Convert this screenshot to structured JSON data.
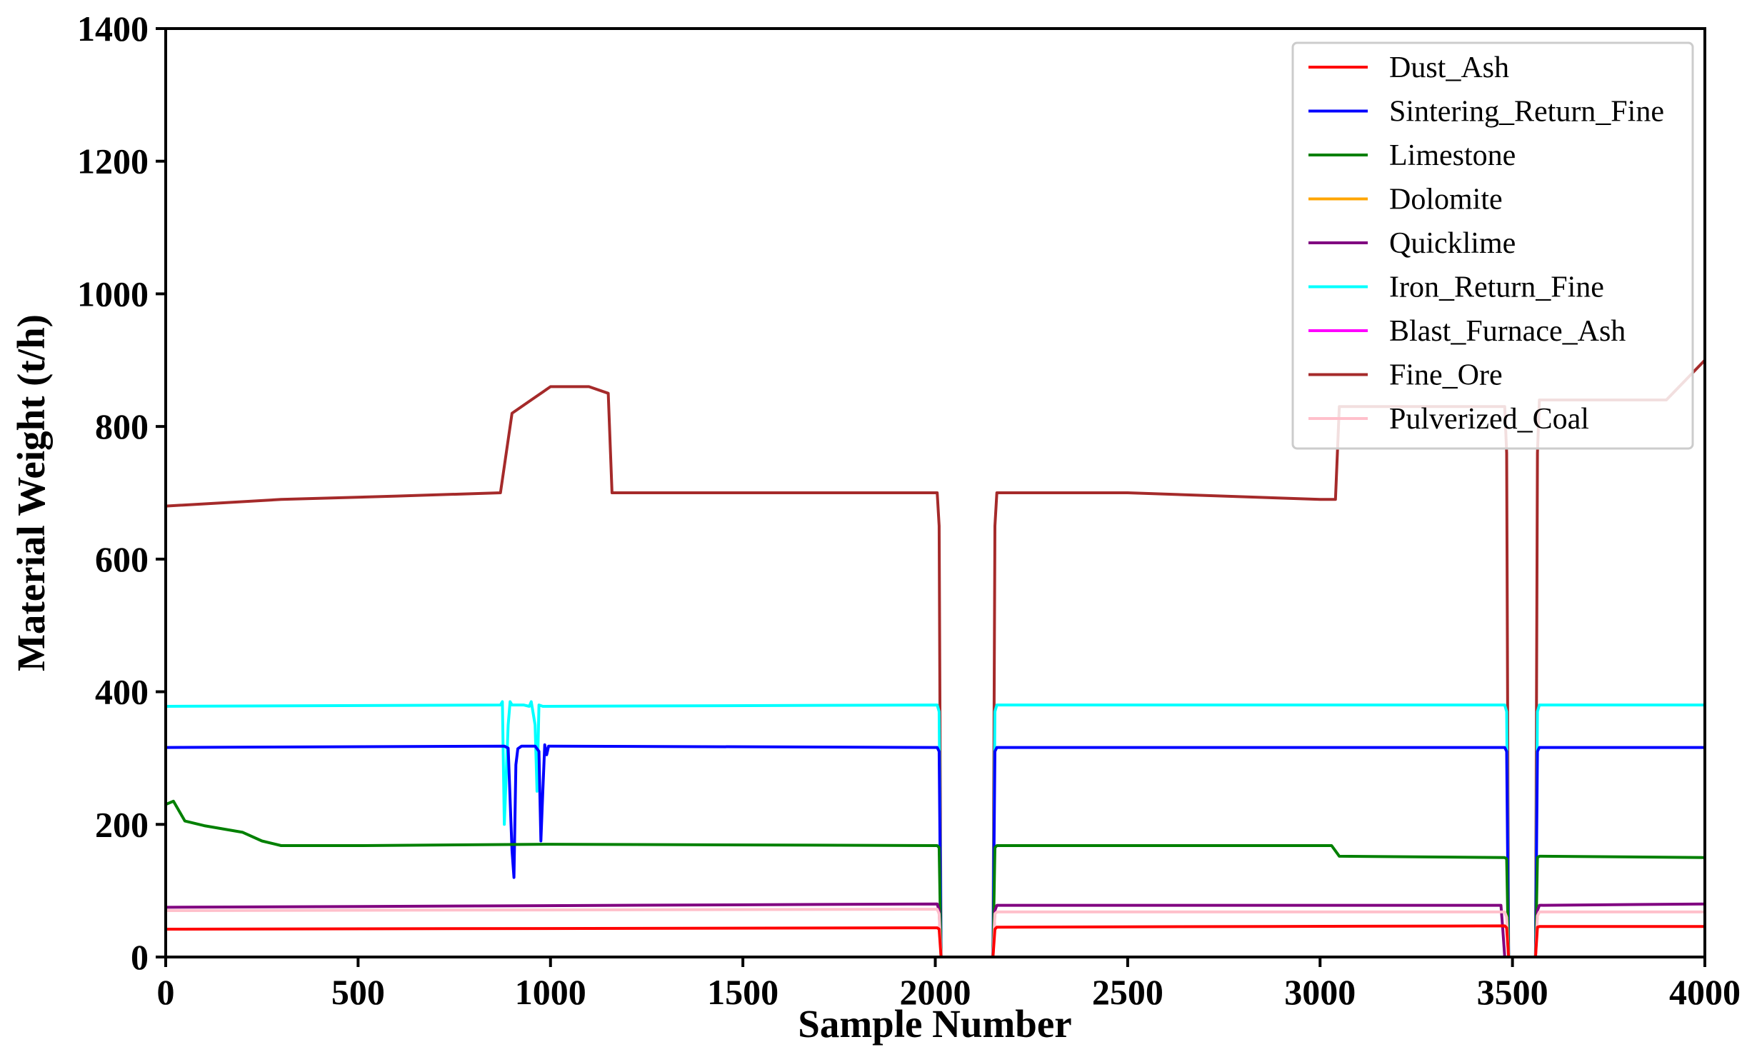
{
  "chart_data": {
    "type": "line",
    "title": "",
    "xlabel": "Sample Number",
    "ylabel": "Material Weight (t/h)",
    "xlim": [
      0,
      4000
    ],
    "ylim": [
      0,
      1400
    ],
    "xticks": [
      0,
      500,
      1000,
      1500,
      2000,
      2500,
      3000,
      3500,
      4000
    ],
    "yticks": [
      0,
      200,
      400,
      600,
      800,
      1000,
      1200,
      1400
    ],
    "grid": false,
    "legend_position": "top-right",
    "series": [
      {
        "name": "Dust_Ash",
        "color": "#ff0000",
        "x": [
          0,
          2005,
          2010,
          2015,
          2150,
          2155,
          2160,
          3480,
          3485,
          3490,
          3560,
          3565,
          3570,
          4000
        ],
        "y": [
          42,
          44,
          42,
          0,
          0,
          42,
          45,
          47,
          44,
          0,
          0,
          45,
          46,
          46
        ]
      },
      {
        "name": "Sintering_Return_Fine",
        "color": "#0000ff",
        "x": [
          0,
          880,
          890,
          900,
          905,
          910,
          915,
          925,
          960,
          970,
          975,
          980,
          985,
          990,
          995,
          1000,
          2005,
          2010,
          2015,
          2150,
          2155,
          2160,
          3480,
          3485,
          3490,
          3560,
          3565,
          3570,
          4000
        ],
        "y": [
          316,
          318,
          315,
          160,
          120,
          290,
          314,
          318,
          318,
          310,
          175,
          250,
          320,
          305,
          318,
          318,
          316,
          310,
          0,
          0,
          310,
          316,
          316,
          310,
          0,
          0,
          310,
          316,
          316
        ]
      },
      {
        "name": "Limestone",
        "color": "#008000",
        "x": [
          0,
          20,
          50,
          100,
          200,
          250,
          300,
          500,
          1000,
          2005,
          2010,
          2015,
          2150,
          2155,
          2160,
          3000,
          3030,
          3040,
          3050,
          3480,
          3485,
          3490,
          3560,
          3565,
          3570,
          4000
        ],
        "y": [
          230,
          235,
          205,
          198,
          188,
          175,
          168,
          168,
          170,
          168,
          165,
          0,
          0,
          165,
          168,
          168,
          168,
          160,
          152,
          150,
          148,
          0,
          0,
          150,
          152,
          150
        ]
      },
      {
        "name": "Dolomite",
        "color": "#ffa500",
        "x": [
          0,
          4000
        ],
        "y": [
          0,
          0
        ]
      },
      {
        "name": "Quicklime",
        "color": "#800080",
        "x": [
          0,
          2005,
          2010,
          2015,
          2150,
          2155,
          2160,
          3470,
          3475,
          3480,
          3560,
          3565,
          3570,
          4000
        ],
        "y": [
          75,
          80,
          70,
          0,
          0,
          70,
          78,
          78,
          40,
          0,
          0,
          70,
          78,
          80
        ]
      },
      {
        "name": "Iron_Return_Fine",
        "color": "#00ffff",
        "x": [
          0,
          870,
          875,
          880,
          890,
          895,
          900,
          930,
          945,
          950,
          960,
          965,
          970,
          980,
          2005,
          2010,
          2015,
          2150,
          2155,
          2160,
          3480,
          3485,
          3490,
          3560,
          3565,
          3570,
          4000
        ],
        "y": [
          378,
          380,
          385,
          200,
          350,
          385,
          380,
          380,
          378,
          385,
          350,
          250,
          380,
          378,
          380,
          370,
          0,
          0,
          370,
          380,
          380,
          370,
          0,
          0,
          370,
          380,
          380
        ]
      },
      {
        "name": "Blast_Furnace_Ash",
        "color": "#ff00ff",
        "x": [
          0,
          4000
        ],
        "y": [
          0,
          0
        ]
      },
      {
        "name": "Fine_Ore",
        "color": "#a52a2a",
        "x": [
          0,
          300,
          600,
          870,
          900,
          950,
          1000,
          1100,
          1150,
          1160,
          1500,
          2005,
          2010,
          2015,
          2150,
          2155,
          2160,
          2500,
          3000,
          3040,
          3050,
          3480,
          3485,
          3490,
          3560,
          3565,
          3570,
          3900,
          4000
        ],
        "y": [
          680,
          690,
          695,
          700,
          820,
          840,
          860,
          860,
          850,
          700,
          700,
          700,
          650,
          0,
          0,
          650,
          700,
          700,
          690,
          690,
          830,
          830,
          760,
          0,
          0,
          760,
          840,
          840,
          900
        ]
      },
      {
        "name": "Pulverized_Coal",
        "color": "#ffc0cb",
        "x": [
          0,
          2005,
          2010,
          2015,
          2150,
          2155,
          2160,
          3480,
          3485,
          3490,
          3560,
          3565,
          3570,
          4000
        ],
        "y": [
          70,
          72,
          65,
          0,
          0,
          65,
          68,
          68,
          60,
          0,
          0,
          62,
          68,
          68
        ]
      }
    ]
  }
}
